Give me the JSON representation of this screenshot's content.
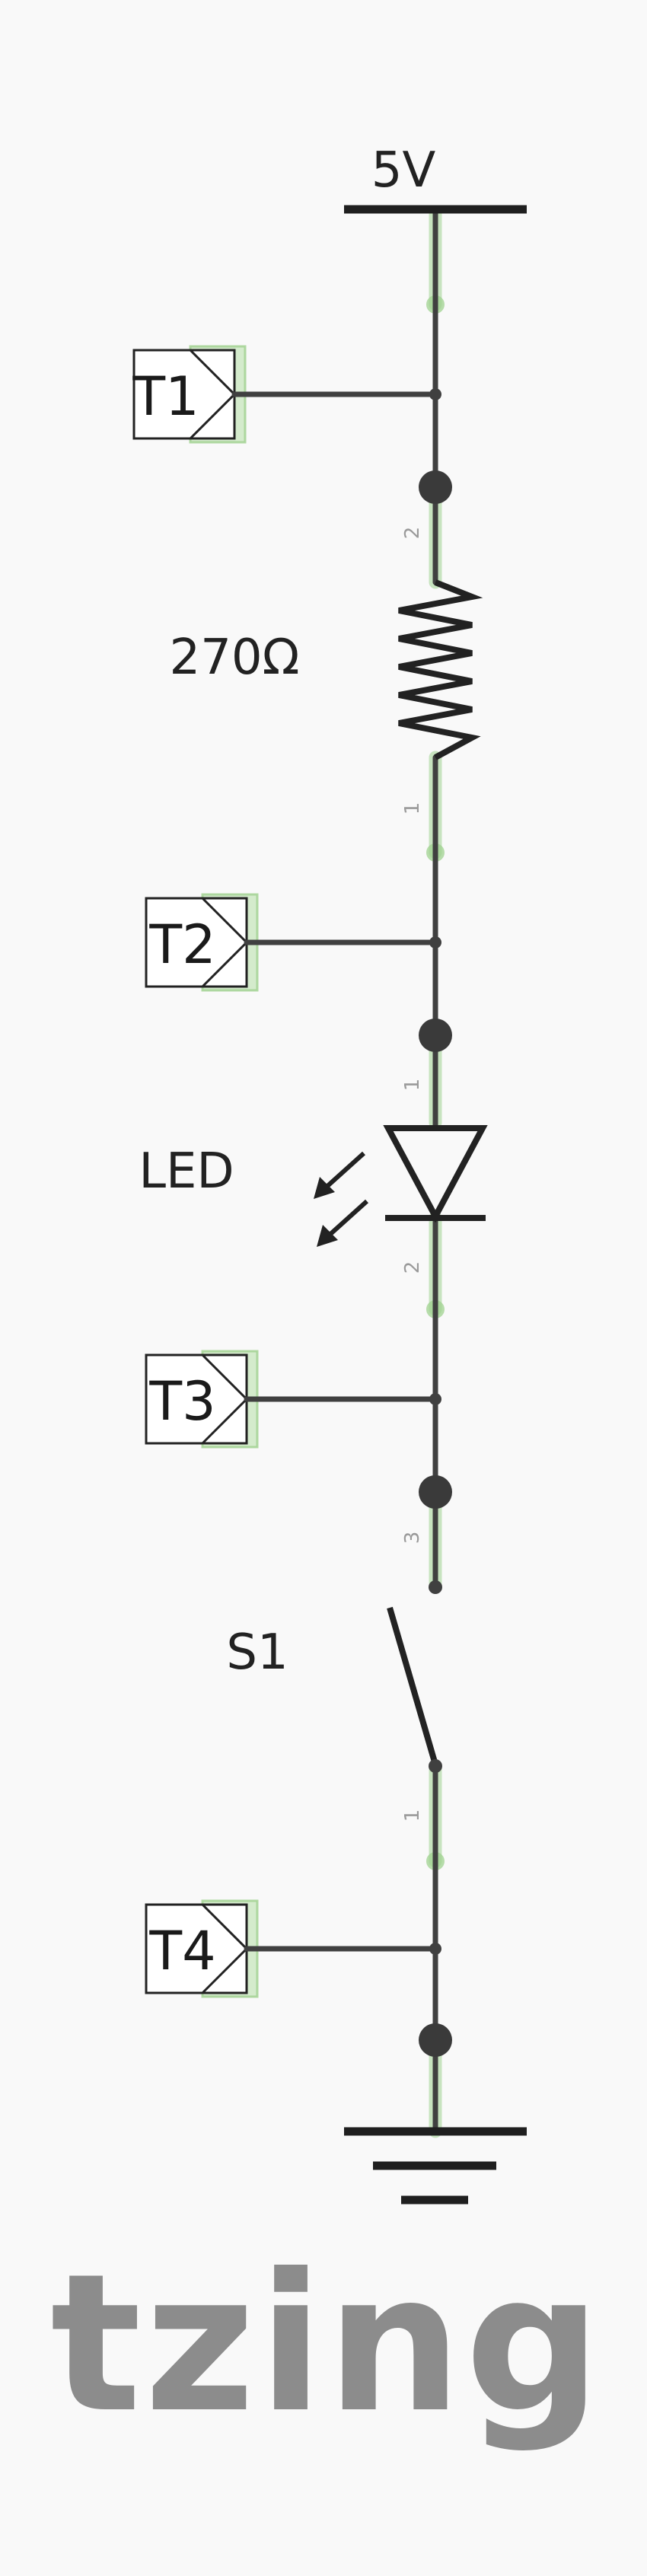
{
  "supply": {
    "label": "5V"
  },
  "components": {
    "resistor": {
      "label": "270Ω",
      "pin_top": "2",
      "pin_bottom": "1"
    },
    "led": {
      "label": "LED",
      "pin_top": "1",
      "pin_bottom": "2"
    },
    "switch": {
      "label": "S1",
      "pin_top": "3",
      "pin_bottom": "1"
    }
  },
  "terminals": [
    {
      "label": "T1"
    },
    {
      "label": "T2"
    },
    {
      "label": "T3"
    },
    {
      "label": "T4"
    }
  ],
  "logo": {
    "text": "tzing"
  },
  "colors": {
    "wire": "#404040",
    "highlight": "#9fd18f",
    "logo": "#8c8c8c",
    "background": "#f9f9f9"
  }
}
